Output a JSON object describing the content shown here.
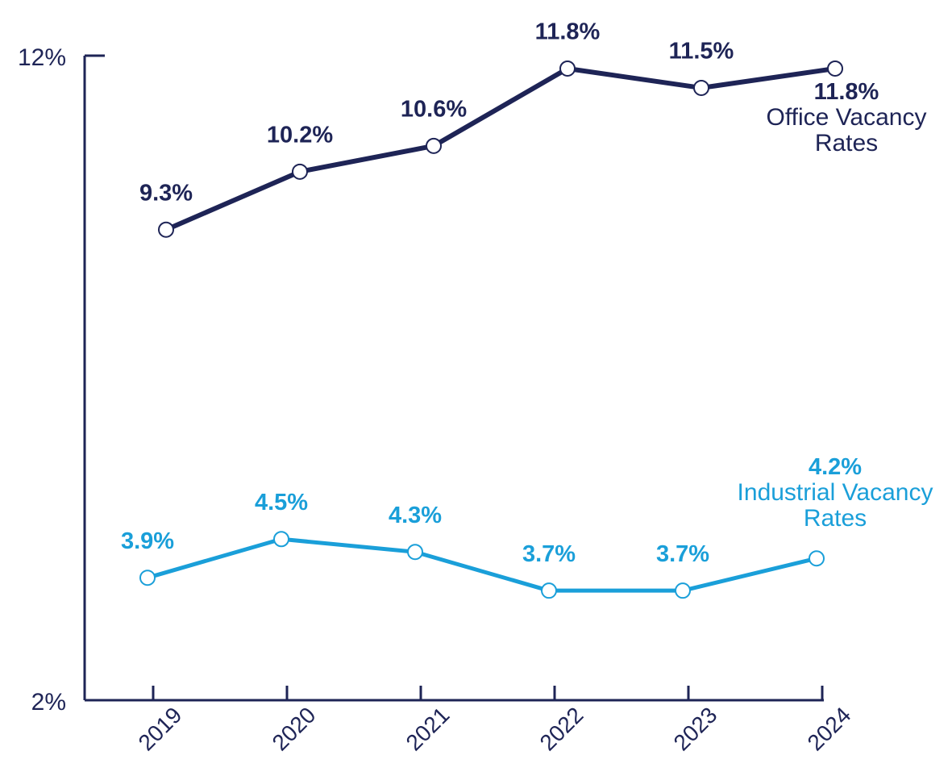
{
  "chart_data": {
    "type": "line",
    "categories": [
      "2019",
      "2020",
      "2021",
      "2022",
      "2023",
      "2024"
    ],
    "series": [
      {
        "name": "Office Vacancy Rates",
        "color": "#1e2456",
        "values": [
          9.3,
          10.2,
          10.6,
          11.8,
          11.5,
          11.8
        ],
        "value_labels": [
          "9.3%",
          "10.2%",
          "10.6%",
          "11.8%",
          "11.5%",
          "11.8%"
        ]
      },
      {
        "name": "Industrial Vacancy Rates",
        "color": "#1a9fd9",
        "values": [
          3.9,
          4.5,
          4.3,
          3.7,
          3.7,
          4.2
        ],
        "value_labels": [
          "3.9%",
          "4.5%",
          "4.3%",
          "3.7%",
          "3.7%",
          "4.2%"
        ]
      }
    ],
    "ylim": [
      2,
      12
    ],
    "yticks": [
      {
        "value": 2,
        "label": "2%"
      },
      {
        "value": 12,
        "label": "12%"
      }
    ]
  }
}
